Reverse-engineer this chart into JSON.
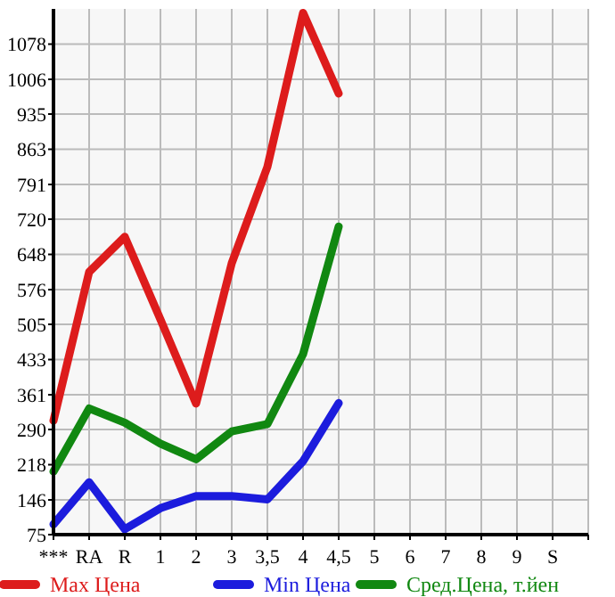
{
  "chart_data": {
    "type": "line",
    "categories": [
      "***",
      "RA",
      "R",
      "1",
      "2",
      "3",
      "3,5",
      "4",
      "4,5",
      "5",
      "6",
      "7",
      "8",
      "9",
      "S"
    ],
    "ylim": [
      75,
      1150
    ],
    "yticks": [
      75,
      146,
      218,
      290,
      361,
      433,
      505,
      576,
      648,
      720,
      791,
      863,
      935,
      1006,
      1078
    ],
    "grid": true,
    "legend": "bottom",
    "marker": "none",
    "series": [
      {
        "name": "Max Цена",
        "color": "#dd1c1c",
        "values": [
          308,
          612,
          684,
          515,
          343,
          630,
          827,
          1142,
          977,
          null,
          null,
          null,
          null,
          null,
          null
        ]
      },
      {
        "name": "Min Цена",
        "color": "#1c1cdd",
        "values": [
          96,
          182,
          86,
          129,
          154,
          154,
          147,
          225,
          344,
          null,
          null,
          null,
          null,
          null,
          null
        ]
      },
      {
        "name": "Сред.Цена, т.йен",
        "color": "#118811",
        "values": [
          204,
          333,
          304,
          261,
          229,
          286,
          301,
          444,
          705,
          null,
          null,
          null,
          null,
          null,
          null
        ]
      }
    ]
  }
}
